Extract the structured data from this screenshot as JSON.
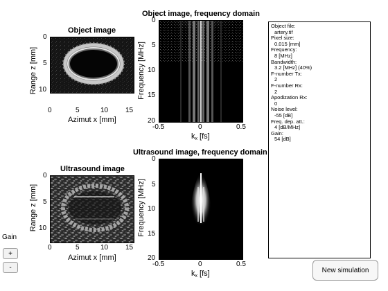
{
  "plots": {
    "object_image": {
      "title": "Object image",
      "xlabel": "Azimut x [mm]",
      "ylabel": "Range z [mm]",
      "xticks": [
        "0",
        "5",
        "10",
        "15"
      ],
      "yticks": [
        "0",
        "5",
        "10"
      ]
    },
    "object_freq": {
      "title": "Object image, frequency domain",
      "xlabel_main": "k",
      "xlabel_sub": "x",
      "xlabel_unit": " [fs]",
      "ylabel": "Frequency [MHz]",
      "xticks": [
        "-0.5",
        "0",
        "0.5"
      ],
      "yticks": [
        "0",
        "5",
        "10",
        "15",
        "20"
      ]
    },
    "ultrasound_image": {
      "title": "Ultrasound image",
      "xlabel": "Azimut x [mm]",
      "ylabel": "Range z [mm]",
      "xticks": [
        "0",
        "5",
        "10",
        "15"
      ],
      "yticks": [
        "0",
        "5",
        "10"
      ]
    },
    "ultrasound_freq": {
      "title": "Ultrasound image, frequency domain",
      "xlabel_main": "k",
      "xlabel_sub": "x",
      "xlabel_unit": " [fs]",
      "ylabel": "Frequency [MHz]",
      "xticks": [
        "-0.5",
        "0",
        "0.5"
      ],
      "yticks": [
        "0",
        "5",
        "10",
        "15",
        "20"
      ]
    }
  },
  "info": {
    "object_file_label": "Object file:",
    "object_file_value": "artery.tif",
    "pixel_size_label": "Pixel size:",
    "pixel_size_value": "0.015 [mm]",
    "frequency_label": "Frequency:",
    "frequency_value": "8 [MHz]",
    "bandwidth_label": "Bandwidth:",
    "bandwidth_value": "3.2 [MHz] (40%)",
    "fnumber_tx_label": "F-number Tx:",
    "fnumber_tx_value": "2",
    "fnumber_rx_label": "F-number Rx:",
    "fnumber_rx_value": "2",
    "apodization_label": "Apodization Rx:",
    "apodization_value": "0",
    "noise_label": "Noise level:",
    "noise_value": "-55 [dB]",
    "freq_dep_label": "Freq. dep. att.:",
    "freq_dep_value": "4 [dB/MHz]",
    "gain_label": "Gain:",
    "gain_value": "54 [dB]"
  },
  "controls": {
    "gain_label": "Gain",
    "plus_label": "+",
    "minus_label": "-",
    "new_simulation_label": "New simulation"
  }
}
